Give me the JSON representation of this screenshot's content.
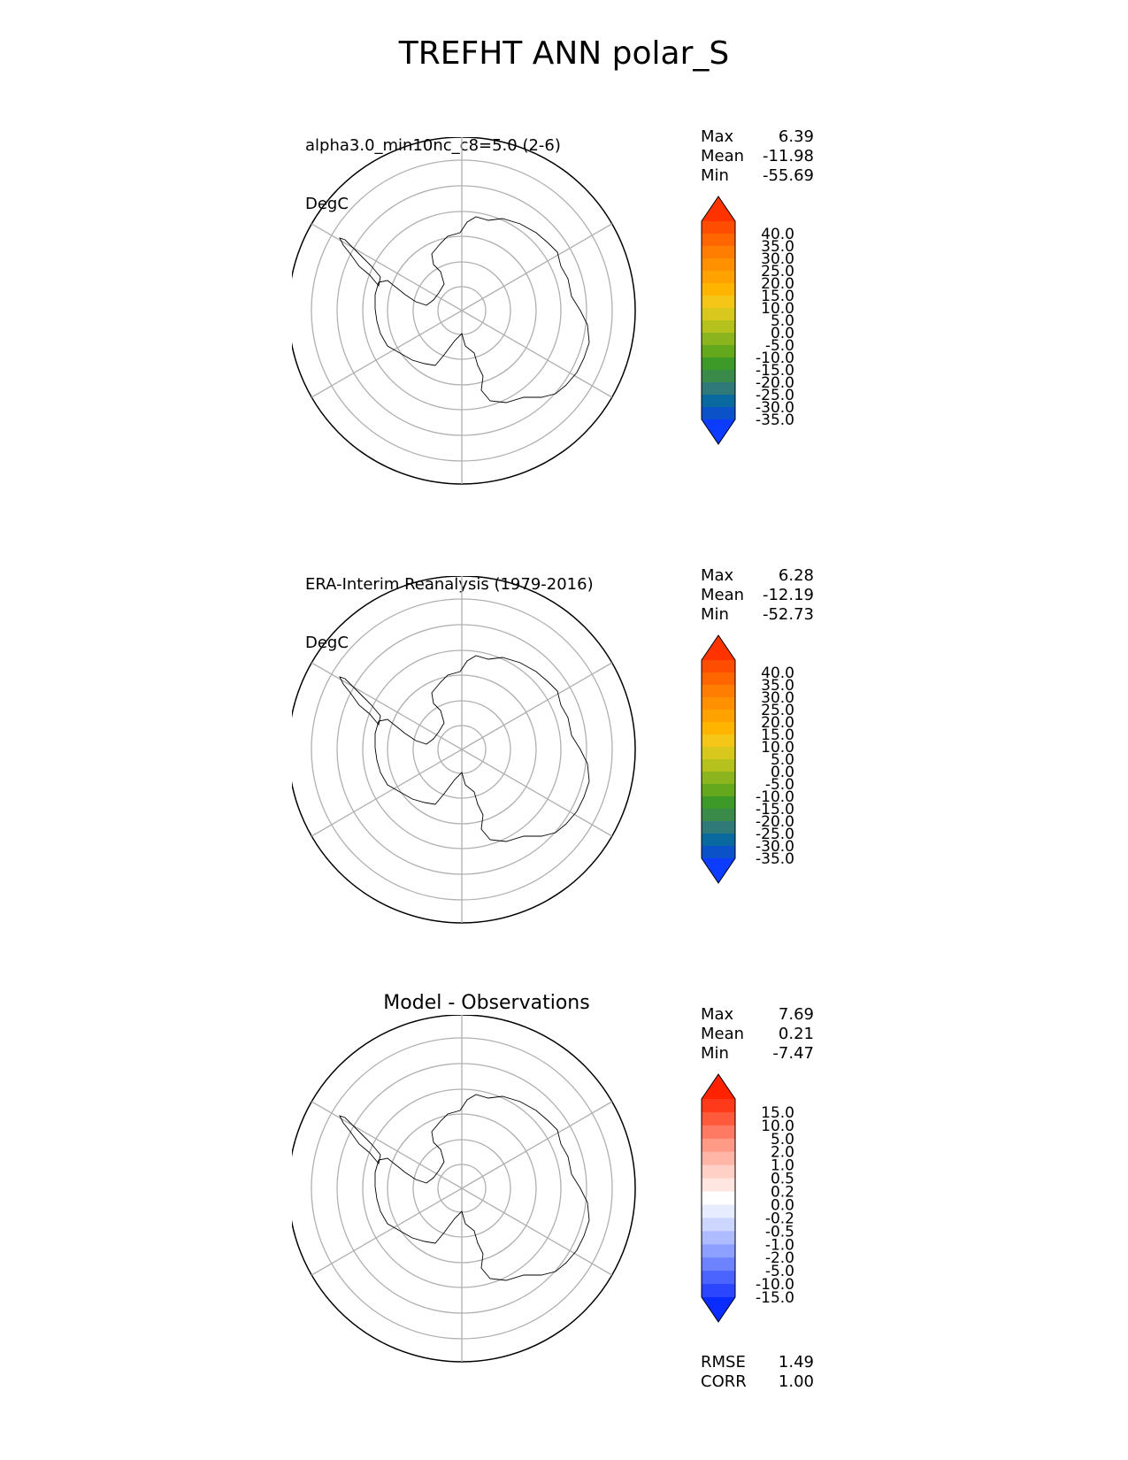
{
  "figure": {
    "title": "TREFHT ANN polar_S"
  },
  "panels": [
    {
      "title_line1": "alpha3.0_min10nc_c8=5.0 (2-6)",
      "title_line2": "DegC",
      "stats": {
        "max_label": "Max",
        "max": "6.39",
        "mean_label": "Mean",
        "mean": "-11.98",
        "min_label": "Min",
        "min": "-55.69"
      }
    },
    {
      "title_line1": "ERA-Interim Reanalysis (1979-2016)",
      "title_line2": "DegC",
      "stats": {
        "max_label": "Max",
        "max": "6.28",
        "mean_label": "Mean",
        "mean": "-12.19",
        "min_label": "Min",
        "min": "-52.73"
      }
    },
    {
      "title_center": "Model - Observations",
      "stats": {
        "max_label": "Max",
        "max": "7.69",
        "mean_label": "Mean",
        "mean": "0.21",
        "min_label": "Min",
        "min": "-7.47"
      },
      "metrics": {
        "rmse_label": "RMSE",
        "rmse": "1.49",
        "corr_label": "CORR",
        "corr": "1.00"
      }
    }
  ],
  "colorbars": {
    "temperature": {
      "labels": [
        "40.0",
        "35.0",
        "30.0",
        "25.0",
        "20.0",
        "15.0",
        "10.0",
        "5.0",
        "0.0",
        "-5.0",
        "-10.0",
        "-15.0",
        "-20.0",
        "-25.0",
        "-30.0",
        "-35.0"
      ],
      "colors": [
        "#ff3300",
        "#ff4d00",
        "#ff6600",
        "#ff7d00",
        "#ff9000",
        "#ffa200",
        "#ffb400",
        "#f5c518",
        "#d8c81e",
        "#b5c21e",
        "#8cb41e",
        "#64a81e",
        "#3d9a28",
        "#3a8a4a",
        "#2f7a78",
        "#0a6aa0",
        "#0b52c8",
        "#0b3cff"
      ]
    },
    "difference": {
      "labels": [
        "15.0",
        "10.0",
        "5.0",
        "2.0",
        "1.0",
        "0.5",
        "0.2",
        "0.0",
        "-0.2",
        "-0.5",
        "-1.0",
        "-2.0",
        "-5.0",
        "-10.0",
        "-15.0"
      ],
      "colors": [
        "#ff2200",
        "#ff3a1a",
        "#ff5a3c",
        "#ff7a62",
        "#ff9a86",
        "#ffb6a6",
        "#ffd0c6",
        "#ffe6e0",
        "#ffffff",
        "#e8ecff",
        "#cdd6ff",
        "#aebcff",
        "#8ea0ff",
        "#6c82ff",
        "#4c64ff",
        "#2c46ff",
        "#0b2cff"
      ]
    }
  },
  "chart_data": [
    {
      "type": "heatmap",
      "title": "alpha3.0_min10nc_c8=5.0 (2-6)",
      "units": "DegC",
      "projection": "south polar stereographic",
      "grid": true,
      "levels": [
        -35.0,
        -30.0,
        -25.0,
        -20.0,
        -15.0,
        -10.0,
        -5.0,
        0.0,
        5.0,
        10.0,
        15.0,
        20.0,
        25.0,
        30.0,
        35.0,
        40.0
      ],
      "stats": {
        "max": 6.39,
        "mean": -11.98,
        "min": -55.69
      }
    },
    {
      "type": "heatmap",
      "title": "ERA-Interim Reanalysis (1979-2016)",
      "units": "DegC",
      "projection": "south polar stereographic",
      "grid": true,
      "levels": [
        -35.0,
        -30.0,
        -25.0,
        -20.0,
        -15.0,
        -10.0,
        -5.0,
        0.0,
        5.0,
        10.0,
        15.0,
        20.0,
        25.0,
        30.0,
        35.0,
        40.0
      ],
      "stats": {
        "max": 6.28,
        "mean": -12.19,
        "min": -52.73
      }
    },
    {
      "type": "heatmap",
      "title": "Model - Observations",
      "projection": "south polar stereographic",
      "grid": true,
      "levels": [
        -15.0,
        -10.0,
        -5.0,
        -2.0,
        -1.0,
        -0.5,
        -0.2,
        0.0,
        0.2,
        0.5,
        1.0,
        2.0,
        5.0,
        10.0,
        15.0
      ],
      "stats": {
        "max": 7.69,
        "mean": 0.21,
        "min": -7.47
      },
      "rmse": 1.49,
      "corr": 1.0
    }
  ]
}
